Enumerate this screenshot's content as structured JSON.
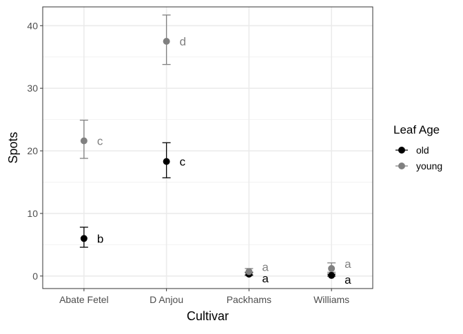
{
  "chart_data": {
    "type": "scatter",
    "xlabel": "Cultivar",
    "ylabel": "Spots",
    "categories": [
      "Abate Fetel",
      "D Anjou",
      "Packhams",
      "Williams"
    ],
    "ylim": [
      -2,
      43
    ],
    "yticks": [
      0,
      10,
      20,
      30,
      40
    ],
    "grid": true,
    "legend": {
      "title": "Leaf Age",
      "position": "right"
    },
    "series": [
      {
        "name": "old",
        "color": "#000000",
        "points": [
          {
            "category": "Abate Fetel",
            "y": 6.0,
            "lower": 4.6,
            "upper": 7.8,
            "label": "b"
          },
          {
            "category": "D Anjou",
            "y": 18.3,
            "lower": 15.7,
            "upper": 21.3,
            "label": "c"
          },
          {
            "category": "Packhams",
            "y": 0.3,
            "lower": 0.1,
            "upper": 0.6,
            "label": "a"
          },
          {
            "category": "Williams",
            "y": 0.1,
            "lower": 0.0,
            "upper": 0.3,
            "label": "a"
          }
        ]
      },
      {
        "name": "young",
        "color": "#808080",
        "points": [
          {
            "category": "Abate Fetel",
            "y": 21.6,
            "lower": 18.8,
            "upper": 24.9,
            "label": "c"
          },
          {
            "category": "D Anjou",
            "y": 37.5,
            "lower": 33.8,
            "upper": 41.7,
            "label": "d"
          },
          {
            "category": "Packhams",
            "y": 0.7,
            "lower": 0.3,
            "upper": 1.2,
            "label": "a"
          },
          {
            "category": "Williams",
            "y": 1.2,
            "lower": 0.6,
            "upper": 2.1,
            "label": "a"
          }
        ]
      }
    ]
  }
}
